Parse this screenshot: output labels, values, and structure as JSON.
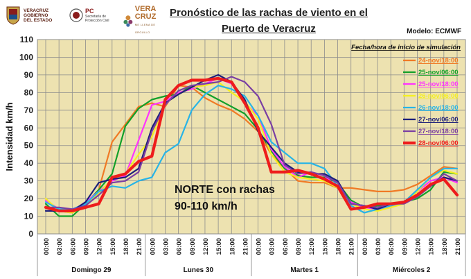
{
  "logos": {
    "veracruz": {
      "lines": [
        "VERACRUZ",
        "GOBIERNO",
        "DEL ESTADO"
      ]
    },
    "pc": {
      "title": "PC",
      "lines": [
        "Secretaría de",
        "Protección Civil"
      ]
    },
    "vc": {
      "lines": [
        "VERA",
        "CRUZ"
      ],
      "tagline": "ME LLENA DE ORGULLO"
    }
  },
  "title_line1": "Pronóstico de las rachas de viento en el",
  "title_line2": "Puerto de Veracruz",
  "model_label": "Modelo: ECMWF",
  "chart_data": {
    "type": "line",
    "ylabel": "Intensidad km/h",
    "ylim": [
      0,
      110
    ],
    "yticks": [
      0,
      10,
      20,
      30,
      40,
      50,
      60,
      70,
      80,
      90,
      100,
      110
    ],
    "x": [
      "00:00",
      "03:00",
      "06:00",
      "09:00",
      "12:00",
      "15:00",
      "18:00",
      "21:00",
      "00:00",
      "03:00",
      "06:00",
      "09:00",
      "12:00",
      "15:00",
      "18:00",
      "21:00",
      "00:00",
      "03:00",
      "06:00",
      "09:00",
      "12:00",
      "15:00",
      "18:00",
      "21:00",
      "00:00",
      "03:00",
      "06:00",
      "09:00",
      "12:00",
      "15:00",
      "18:00",
      "21:00"
    ],
    "day_groups": [
      {
        "label": "Domingo 29",
        "start": 0,
        "end": 7
      },
      {
        "label": "Lunes 30",
        "start": 8,
        "end": 15
      },
      {
        "label": "Martes 1",
        "start": 16,
        "end": 23
      },
      {
        "label": "Miércoles 2",
        "start": 24,
        "end": 31
      }
    ],
    "legend_title": "Fecha/hora de inicio de simulación",
    "annotation_line1": "NORTE con rachas",
    "annotation_line2": "90-110 km/h",
    "plot_bg": "#ede2b0",
    "series": [
      {
        "name": "24-nov/18:00",
        "color": "#f07a25",
        "width": 2.2,
        "values": [
          15,
          13,
          12,
          16,
          25,
          52,
          62,
          72,
          74,
          72,
          84,
          83,
          77,
          73,
          70,
          65,
          58,
          45,
          37,
          30,
          29,
          29,
          26,
          26,
          25,
          24,
          24,
          25,
          28,
          33,
          38,
          37
        ]
      },
      {
        "name": "25-nov/06:00",
        "color": "#12a02a",
        "width": 2.2,
        "values": [
          17,
          10,
          10,
          17,
          25,
          34,
          61,
          71,
          76,
          78,
          79,
          84,
          80,
          76,
          72,
          68,
          59,
          47,
          37,
          33,
          32,
          32,
          29,
          19,
          15,
          16,
          16,
          18,
          20,
          25,
          35,
          34
        ]
      },
      {
        "name": "25-nov/18:00",
        "color": "#ff33ff",
        "width": 2.2,
        "values": [
          19,
          14,
          13,
          18,
          24,
          30,
          33,
          53,
          73,
          75,
          80,
          82,
          85,
          88,
          85,
          74,
          67,
          48,
          38,
          32,
          35,
          33,
          26,
          18,
          15,
          14,
          15,
          18,
          24,
          30,
          32,
          29
        ]
      },
      {
        "name": "26-nov/06:00",
        "color": "#f5f020",
        "width": 2.2,
        "values": [
          20,
          13,
          12,
          16,
          23,
          31,
          34,
          45,
          55,
          74,
          79,
          83,
          84,
          86,
          80,
          75,
          65,
          45,
          35,
          32,
          31,
          30,
          26,
          17,
          14,
          13,
          15,
          17,
          24,
          32,
          36,
          34
        ]
      },
      {
        "name": "26-nov/18:00",
        "color": "#28b4e6",
        "width": 2.2,
        "values": [
          18,
          14,
          14,
          17,
          24,
          27,
          26,
          30,
          32,
          46,
          51,
          70,
          79,
          84,
          82,
          78,
          67,
          52,
          46,
          40,
          40,
          37,
          27,
          16,
          12,
          14,
          16,
          18,
          25,
          32,
          37,
          37
        ]
      },
      {
        "name": "27-nov/06:00",
        "color": "#1c1f7a",
        "width": 2.2,
        "values": [
          13,
          13,
          13,
          18,
          29,
          31,
          32,
          37,
          60,
          74,
          79,
          83,
          87,
          90,
          86,
          76,
          58,
          49,
          40,
          35,
          34,
          34,
          30,
          17,
          16,
          14,
          17,
          18,
          22,
          27,
          32,
          30
        ]
      },
      {
        "name": "27-nov/18:00",
        "color": "#7a3fa3",
        "width": 2.2,
        "values": [
          15,
          15,
          14,
          16,
          22,
          29,
          30,
          35,
          58,
          73,
          81,
          84,
          85,
          86,
          89,
          86,
          78,
          62,
          39,
          34,
          35,
          33,
          29,
          17,
          16,
          15,
          17,
          17,
          21,
          27,
          34,
          30
        ]
      },
      {
        "name": "28-nov/06:00",
        "color": "#ee1c1c",
        "width": 4.2,
        "values": [
          15,
          13,
          13,
          15,
          17,
          32,
          34,
          41,
          44,
          76,
          84,
          87,
          87,
          88,
          86,
          74,
          60,
          35,
          35,
          36,
          34,
          31,
          27,
          14,
          15,
          17,
          17,
          18,
          22,
          28,
          31,
          22
        ]
      }
    ]
  }
}
